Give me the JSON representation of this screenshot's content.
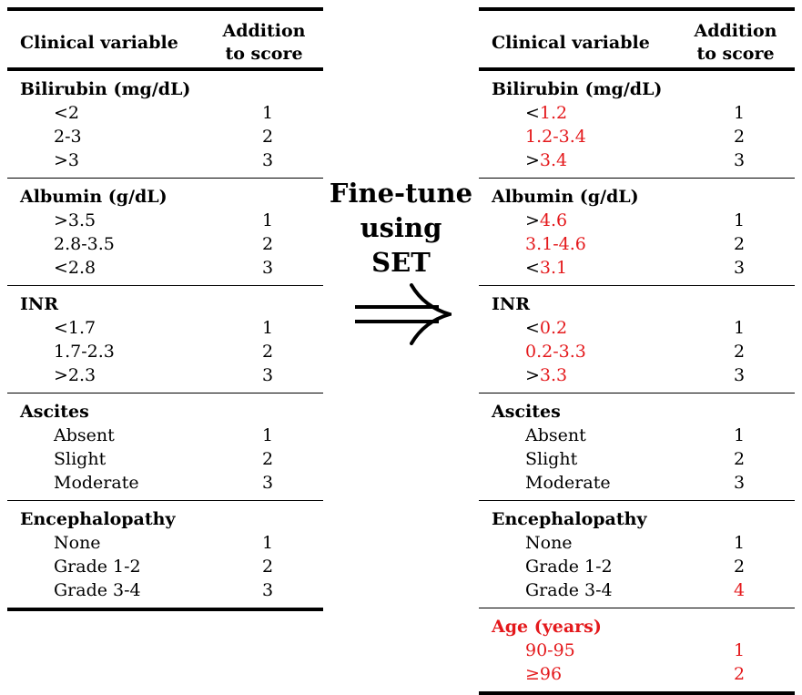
{
  "header": {
    "variable": "Clinical variable",
    "addition_line1": "Addition",
    "addition_line2": "to score"
  },
  "left": {
    "sections": [
      {
        "title": "Bilirubin (mg/dL)",
        "rows": [
          {
            "label": "<2",
            "value": "1"
          },
          {
            "label": "2-3",
            "value": "2"
          },
          {
            "label": ">3",
            "value": "3"
          }
        ]
      },
      {
        "title": "Albumin (g/dL)",
        "rows": [
          {
            "label": ">3.5",
            "value": "1"
          },
          {
            "label": "2.8-3.5",
            "value": "2"
          },
          {
            "label": "<2.8",
            "value": "3"
          }
        ]
      },
      {
        "title": "INR",
        "rows": [
          {
            "label": "<1.7",
            "value": "1"
          },
          {
            "label": "1.7-2.3",
            "value": "2"
          },
          {
            "label": ">2.3",
            "value": "3"
          }
        ]
      },
      {
        "title": "Ascites",
        "rows": [
          {
            "label": "Absent",
            "value": "1"
          },
          {
            "label": "Slight",
            "value": "2"
          },
          {
            "label": "Moderate",
            "value": "3"
          }
        ]
      },
      {
        "title": "Encephalopathy",
        "rows": [
          {
            "label": "None",
            "value": "1"
          },
          {
            "label": "Grade 1-2",
            "value": "2"
          },
          {
            "label": "Grade 3-4",
            "value": "3"
          }
        ]
      }
    ]
  },
  "middle": {
    "label": "Fine-tune\nusing\nSET",
    "arrow_icon": "double-right-arrow-icon"
  },
  "right": {
    "highlight_color": "#e4191c",
    "sections": [
      {
        "title": "Bilirubin (mg/dL)",
        "rows": [
          {
            "prefix": "<",
            "label": "1.2",
            "value": "1"
          },
          {
            "prefix": "",
            "label": "1.2-3.4",
            "value": "2"
          },
          {
            "prefix": ">",
            "label": "3.4",
            "value": "3"
          }
        ]
      },
      {
        "title": "Albumin (g/dL)",
        "rows": [
          {
            "prefix": ">",
            "label": "4.6",
            "value": "1"
          },
          {
            "prefix": "",
            "label": "3.1-4.6",
            "value": "2"
          },
          {
            "prefix": "<",
            "label": "3.1",
            "value": "3"
          }
        ]
      },
      {
        "title": "INR",
        "rows": [
          {
            "prefix": "<",
            "label": "0.2",
            "value": "1"
          },
          {
            "prefix": "",
            "label": "0.2-3.3",
            "value": "2"
          },
          {
            "prefix": ">",
            "label": "3.3",
            "value": "3"
          }
        ]
      },
      {
        "title": "Ascites",
        "rows": [
          {
            "prefix": "",
            "label": "Absent",
            "value": "1"
          },
          {
            "prefix": "",
            "label": "Slight",
            "value": "2"
          },
          {
            "prefix": "",
            "label": "Moderate",
            "value": "3"
          }
        ]
      },
      {
        "title": "Encephalopathy",
        "rows": [
          {
            "prefix": "",
            "label": "None",
            "value": "1"
          },
          {
            "prefix": "",
            "label": "Grade 1-2",
            "value": "2"
          },
          {
            "prefix": "",
            "label": "Grade 3-4",
            "value": "4",
            "value_changed": true
          }
        ]
      },
      {
        "title": "Age (years)",
        "title_changed": true,
        "rows": [
          {
            "prefix": "",
            "label": "90-95",
            "value": "1",
            "value_changed": true
          },
          {
            "prefix": "",
            "label": "≥96",
            "value": "2",
            "value_changed": true
          }
        ]
      }
    ]
  }
}
